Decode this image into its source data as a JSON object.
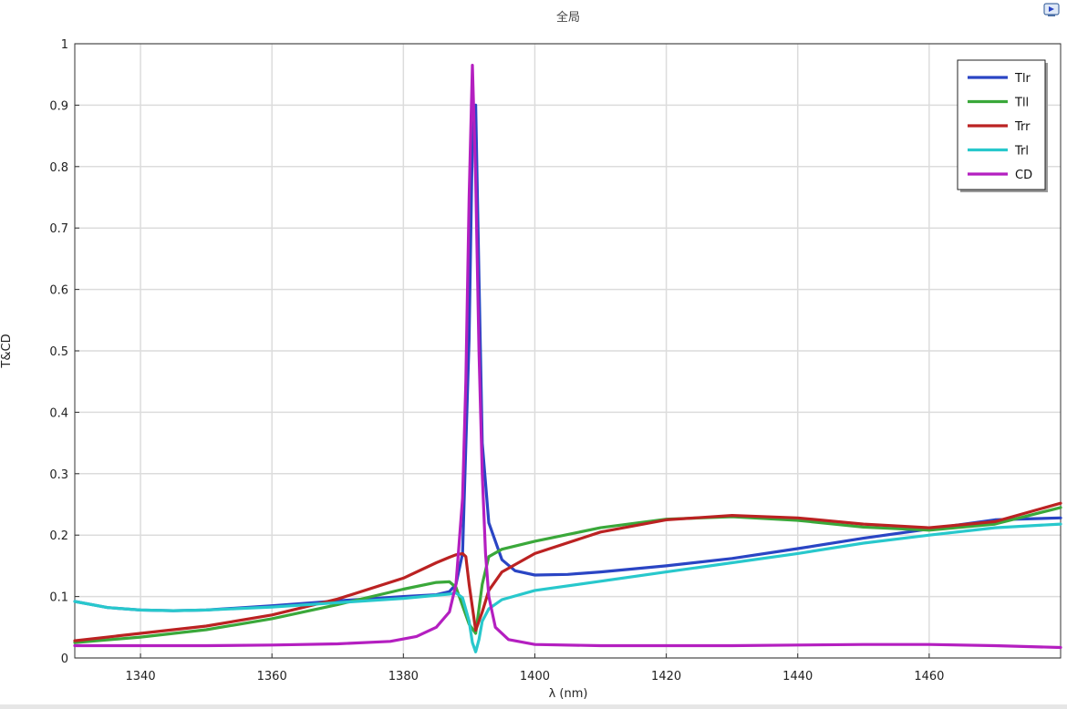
{
  "chart_data": {
    "type": "line",
    "title": "全局",
    "xlabel": "λ (nm)",
    "ylabel": "T&CD",
    "xlim": [
      1330,
      1480
    ],
    "ylim": [
      0,
      1
    ],
    "xticks": [
      1340,
      1360,
      1380,
      1400,
      1420,
      1440,
      1460
    ],
    "yticks": [
      0,
      0.1,
      0.2,
      0.3,
      0.4,
      0.5,
      0.6,
      0.7,
      0.8,
      0.9,
      1
    ],
    "ytick_labels": [
      "0",
      "0.1",
      "0.2",
      "0.3",
      "0.4",
      "0.5",
      "0.6",
      "0.7",
      "0.8",
      "0.9",
      "1"
    ],
    "grid": true,
    "legend_position": "top-right",
    "series": [
      {
        "name": "Tlr",
        "color": "#2a45c4",
        "x": [
          1330,
          1335,
          1340,
          1345,
          1350,
          1360,
          1370,
          1380,
          1385,
          1387,
          1388,
          1389,
          1390,
          1390.5,
          1391,
          1391.5,
          1392,
          1393,
          1395,
          1397,
          1400,
          1405,
          1410,
          1420,
          1430,
          1440,
          1450,
          1460,
          1470,
          1480
        ],
        "y": [
          0.092,
          0.082,
          0.078,
          0.077,
          0.078,
          0.085,
          0.093,
          0.1,
          0.103,
          0.108,
          0.12,
          0.17,
          0.52,
          0.85,
          0.9,
          0.62,
          0.35,
          0.22,
          0.16,
          0.142,
          0.135,
          0.136,
          0.14,
          0.15,
          0.162,
          0.178,
          0.195,
          0.21,
          0.225,
          0.228
        ]
      },
      {
        "name": "Tll",
        "color": "#3aa83a",
        "x": [
          1330,
          1340,
          1350,
          1360,
          1370,
          1380,
          1385,
          1387,
          1388,
          1389,
          1390,
          1391,
          1392,
          1393,
          1395,
          1400,
          1410,
          1420,
          1430,
          1440,
          1450,
          1460,
          1470,
          1480
        ],
        "y": [
          0.025,
          0.034,
          0.046,
          0.064,
          0.087,
          0.112,
          0.123,
          0.124,
          0.115,
          0.085,
          0.055,
          0.04,
          0.12,
          0.165,
          0.177,
          0.19,
          0.212,
          0.226,
          0.23,
          0.224,
          0.213,
          0.208,
          0.218,
          0.245
        ]
      },
      {
        "name": "Trr",
        "color": "#bb2222",
        "x": [
          1330,
          1340,
          1350,
          1360,
          1370,
          1380,
          1385,
          1387,
          1388,
          1389,
          1389.5,
          1390,
          1391,
          1392,
          1393,
          1395,
          1400,
          1410,
          1420,
          1430,
          1440,
          1450,
          1460,
          1470,
          1480
        ],
        "y": [
          0.028,
          0.04,
          0.052,
          0.07,
          0.096,
          0.13,
          0.155,
          0.164,
          0.168,
          0.17,
          0.165,
          0.12,
          0.045,
          0.075,
          0.11,
          0.14,
          0.17,
          0.205,
          0.225,
          0.232,
          0.228,
          0.218,
          0.212,
          0.222,
          0.252
        ]
      },
      {
        "name": "Trl",
        "color": "#28c8cc",
        "x": [
          1330,
          1335,
          1340,
          1345,
          1350,
          1360,
          1370,
          1380,
          1387,
          1388,
          1389,
          1390,
          1390.5,
          1391,
          1391.5,
          1392,
          1393,
          1395,
          1400,
          1410,
          1420,
          1430,
          1440,
          1450,
          1460,
          1470,
          1480
        ],
        "y": [
          0.092,
          0.082,
          0.078,
          0.077,
          0.078,
          0.083,
          0.09,
          0.097,
          0.104,
          0.106,
          0.098,
          0.06,
          0.025,
          0.01,
          0.03,
          0.06,
          0.08,
          0.095,
          0.11,
          0.125,
          0.14,
          0.155,
          0.17,
          0.187,
          0.2,
          0.212,
          0.218
        ]
      },
      {
        "name": "CD",
        "color": "#b41fc0",
        "x": [
          1330,
          1340,
          1350,
          1360,
          1370,
          1378,
          1382,
          1385,
          1387,
          1388,
          1389,
          1389.5,
          1390,
          1390.5,
          1391,
          1391.5,
          1392,
          1392.5,
          1393,
          1394,
          1396,
          1400,
          1410,
          1420,
          1430,
          1440,
          1450,
          1460,
          1470,
          1480
        ],
        "y": [
          0.02,
          0.02,
          0.02,
          0.021,
          0.023,
          0.027,
          0.035,
          0.05,
          0.075,
          0.12,
          0.26,
          0.45,
          0.75,
          0.965,
          0.78,
          0.5,
          0.3,
          0.17,
          0.1,
          0.05,
          0.03,
          0.022,
          0.02,
          0.02,
          0.02,
          0.021,
          0.022,
          0.022,
          0.02,
          0.017
        ]
      }
    ]
  }
}
